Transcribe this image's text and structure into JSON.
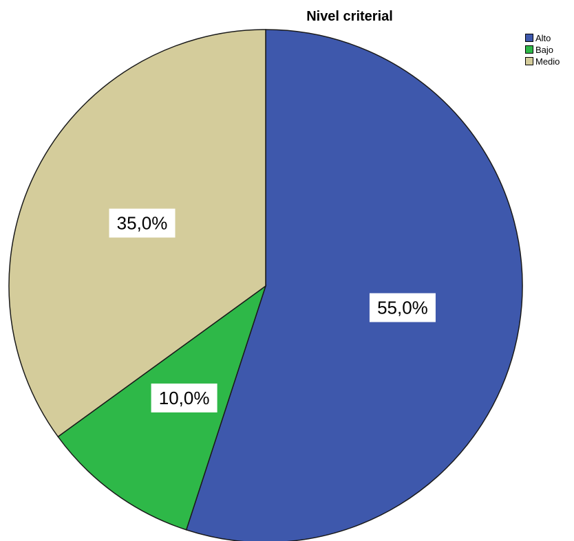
{
  "chart_data": {
    "type": "pie",
    "title": "Nivel criterial",
    "start_angle_deg": 0,
    "direction": "clockwise",
    "slices": [
      {
        "label": "Alto",
        "value": 55.0,
        "display": "55,0%",
        "color": "#3e58ac"
      },
      {
        "label": "Bajo",
        "value": 10.0,
        "display": "10,0%",
        "color": "#2eb848"
      },
      {
        "label": "Medio",
        "value": 35.0,
        "display": "35,0%",
        "color": "#d4cc9b"
      }
    ],
    "legend_position": "top-right"
  }
}
